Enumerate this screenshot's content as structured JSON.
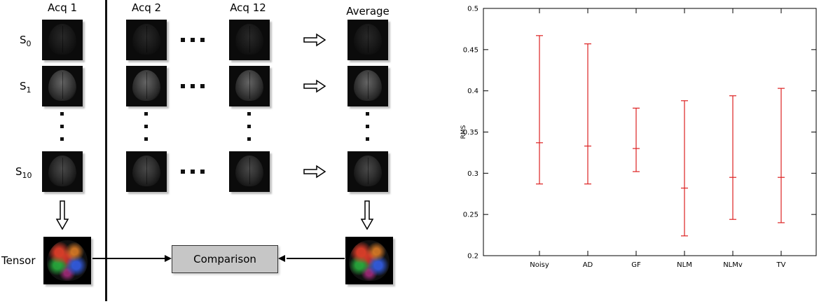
{
  "diagram": {
    "col_headers": [
      "Acq 1",
      "Acq 2",
      "Acq 12",
      "Average"
    ],
    "row_labels": [
      {
        "base": "S",
        "sub": "0"
      },
      {
        "base": "S",
        "sub": "1"
      },
      {
        "base": "S",
        "sub": "10"
      }
    ],
    "tensor_label": "Tensor",
    "comparison_label": "Comparison"
  },
  "icons": {
    "right_arrow": "⇨",
    "down_arrow": "⇩"
  },
  "chart_data": {
    "type": "scatter",
    "subtype": "errorbar",
    "title": "",
    "xlabel": "",
    "ylabel": "RMS",
    "ylim": [
      0.2,
      0.5
    ],
    "yticks": [
      "0.2",
      "0.25",
      "0.3",
      "0.35",
      "0.4",
      "0.45",
      "0.5"
    ],
    "categories": [
      "Noisy",
      "AD",
      "GF",
      "NLM",
      "NLMv",
      "TV"
    ],
    "series": [
      {
        "name": "RMS",
        "values": [
          0.337,
          0.333,
          0.33,
          0.282,
          0.295,
          0.295
        ],
        "low": [
          0.287,
          0.287,
          0.302,
          0.224,
          0.244,
          0.24
        ],
        "high": [
          0.467,
          0.457,
          0.379,
          0.388,
          0.394,
          0.403
        ]
      }
    ],
    "color": "#dd2222",
    "grid": false,
    "legend": false,
    "border": true
  }
}
